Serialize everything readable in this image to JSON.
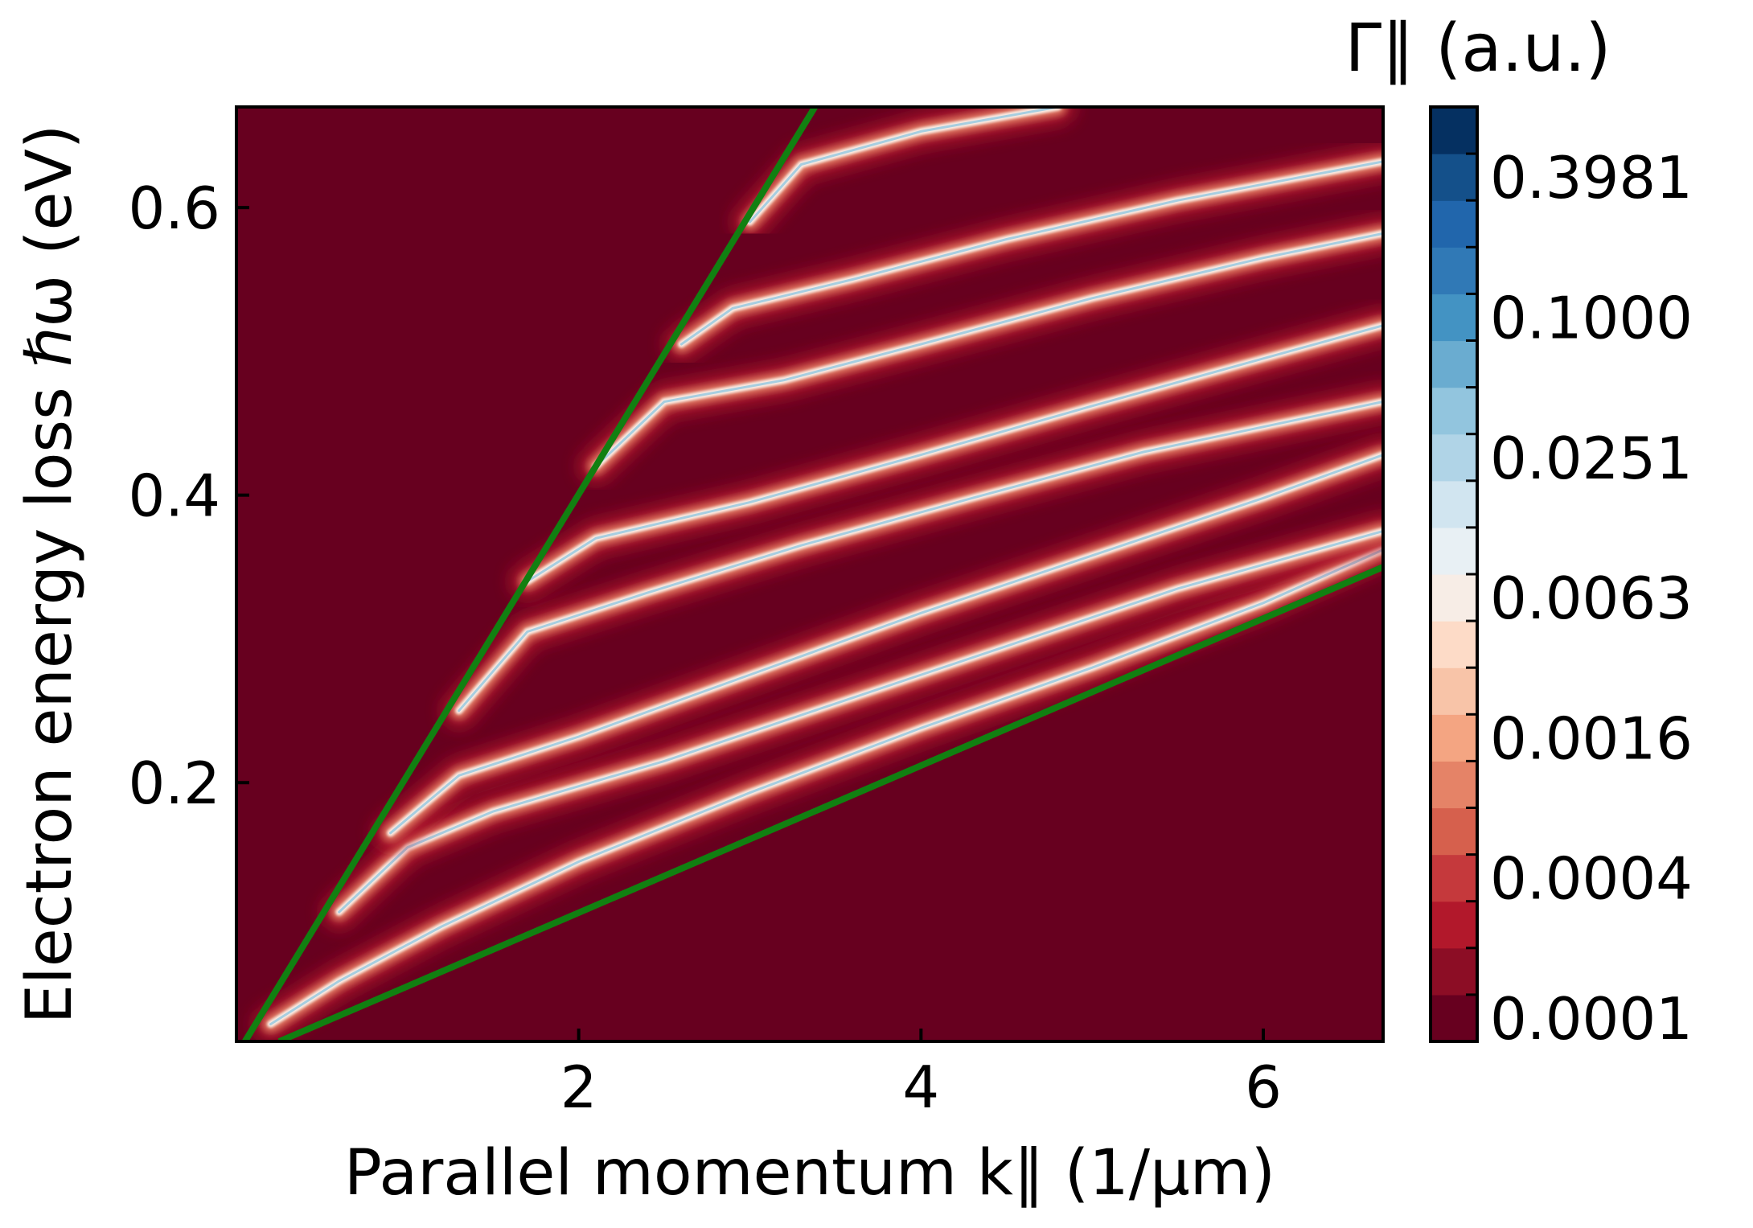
{
  "chart_data": {
    "type": "heatmap",
    "title": "",
    "xlabel": "Parallel momentum k∥ (1/µm)",
    "ylabel": "Electron energy loss ℏω (eV)",
    "xlim": [
      0.0,
      6.7
    ],
    "ylim": [
      0.02,
      0.67
    ],
    "x_ticks": [
      "2",
      "4",
      "6"
    ],
    "y_ticks": [
      "0.2",
      "0.4",
      "0.6"
    ],
    "background_color": "#67001f",
    "light_line": {
      "color": "#118011",
      "slope_ev_per_inv_um": 0.198,
      "points": [
        [
          0.05,
          0.02
        ],
        [
          3.38,
          0.67
        ]
      ]
    },
    "lower_line": {
      "color": "#118011",
      "points": [
        [
          0.25,
          0.02
        ],
        [
          6.7,
          0.35
        ]
      ]
    },
    "modes": [
      {
        "points": [
          [
            0.2,
            0.032
          ],
          [
            0.6,
            0.062
          ],
          [
            1.2,
            0.1
          ],
          [
            2.0,
            0.145
          ],
          [
            3.0,
            0.193
          ],
          [
            4.0,
            0.238
          ],
          [
            5.0,
            0.28
          ],
          [
            6.0,
            0.325
          ],
          [
            6.7,
            0.362
          ]
        ]
      },
      {
        "points": [
          [
            0.6,
            0.11
          ],
          [
            1.0,
            0.155
          ],
          [
            1.5,
            0.18
          ],
          [
            2.5,
            0.215
          ],
          [
            3.5,
            0.255
          ],
          [
            4.5,
            0.295
          ],
          [
            5.5,
            0.335
          ],
          [
            6.7,
            0.375
          ]
        ]
      },
      {
        "points": [
          [
            0.9,
            0.165
          ],
          [
            1.3,
            0.205
          ],
          [
            2.0,
            0.232
          ],
          [
            3.0,
            0.275
          ],
          [
            4.0,
            0.318
          ],
          [
            5.0,
            0.358
          ],
          [
            6.0,
            0.398
          ],
          [
            6.7,
            0.428
          ]
        ]
      },
      {
        "points": [
          [
            1.3,
            0.25
          ],
          [
            1.7,
            0.305
          ],
          [
            2.4,
            0.332
          ],
          [
            3.3,
            0.365
          ],
          [
            4.3,
            0.398
          ],
          [
            5.3,
            0.43
          ],
          [
            6.7,
            0.465
          ]
        ]
      },
      {
        "points": [
          [
            1.7,
            0.34
          ],
          [
            2.1,
            0.37
          ],
          [
            3.0,
            0.395
          ],
          [
            4.0,
            0.428
          ],
          [
            5.0,
            0.462
          ],
          [
            6.0,
            0.495
          ],
          [
            6.7,
            0.518
          ]
        ]
      },
      {
        "points": [
          [
            2.1,
            0.42
          ],
          [
            2.5,
            0.465
          ],
          [
            3.2,
            0.48
          ],
          [
            4.0,
            0.505
          ],
          [
            5.0,
            0.537
          ],
          [
            6.0,
            0.565
          ],
          [
            6.7,
            0.582
          ]
        ]
      },
      {
        "points": [
          [
            2.6,
            0.505
          ],
          [
            2.9,
            0.53
          ],
          [
            3.6,
            0.55
          ],
          [
            4.5,
            0.578
          ],
          [
            5.5,
            0.605
          ],
          [
            6.7,
            0.632
          ]
        ]
      },
      {
        "points": [
          [
            3.0,
            0.59
          ],
          [
            3.3,
            0.63
          ],
          [
            4.0,
            0.653
          ],
          [
            4.8,
            0.67
          ]
        ]
      }
    ],
    "colorbar": {
      "title": "Γ∥ (a.u.)",
      "scale": "log",
      "tick_labels": [
        "0.0001",
        "0.0004",
        "0.0016",
        "0.0063",
        "0.0251",
        "0.1000",
        "0.3981"
      ],
      "colors": [
        "#67001f",
        "#8c0d25",
        "#b2182b",
        "#c5393c",
        "#d6604d",
        "#e58367",
        "#f4a582",
        "#f8c4a8",
        "#fddbc7",
        "#f7ede6",
        "#e8f0f4",
        "#d1e5f0",
        "#b0d4e7",
        "#92c5de",
        "#6aacd0",
        "#4393c3",
        "#3079b6",
        "#2166ac",
        "#14508a",
        "#053061"
      ]
    }
  }
}
